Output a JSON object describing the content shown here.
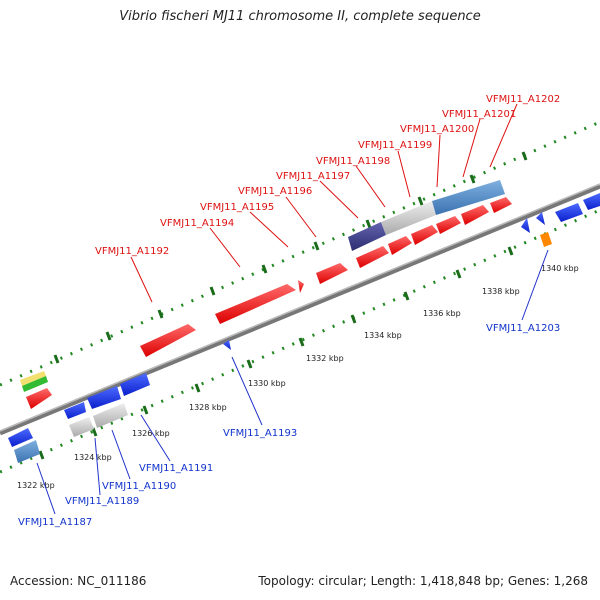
{
  "title": "Vibrio fischeri MJ11 chromosome II, complete sequence",
  "accession": "Accession: NC_011186",
  "summary": "Topology: circular; Length: 1,418,848 bp; Genes: 1,268",
  "scale_ticks": [
    "1322 kbp",
    "1324 kbp",
    "1326 kbp",
    "1328 kbp",
    "1330 kbp",
    "1332 kbp",
    "1334 kbp",
    "1336 kbp",
    "1338 kbp",
    "1340 kbp"
  ],
  "forward_labels": [
    "VFMJ11_A1192",
    "VFMJ11_A1194",
    "VFMJ11_A1195",
    "VFMJ11_A1196",
    "VFMJ11_A1197",
    "VFMJ11_A1198",
    "VFMJ11_A1199",
    "VFMJ11_A1200",
    "VFMJ11_A1201",
    "VFMJ11_A1202"
  ],
  "reverse_labels": [
    "VFMJ11_A1187",
    "VFMJ11_A1189",
    "VFMJ11_A1190",
    "VFMJ11_A1191",
    "VFMJ11_A1193",
    "VFMJ11_A1203"
  ],
  "colors": {
    "forward": "#ee1111",
    "reverse": "#1133dd",
    "gray": "#c8c8c8",
    "steel": "#4a86c0",
    "purple": "#3c3c8a",
    "orange": "#ff8800",
    "track": "#888888",
    "dots": "#228822"
  }
}
